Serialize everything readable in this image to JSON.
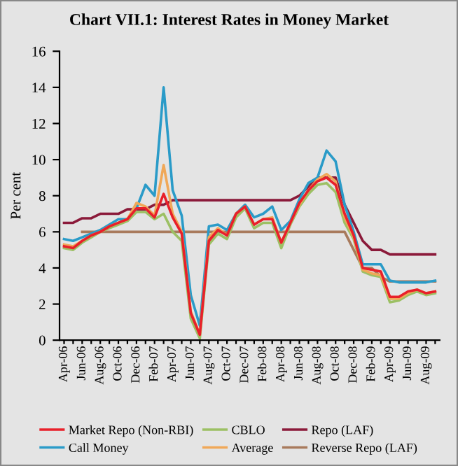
{
  "chart_data": {
    "type": "line",
    "title": "Chart VII.1: Interest Rates in Money Market",
    "ylabel": "Per cent",
    "categories": [
      "Apr-06",
      null,
      "Jun-06",
      null,
      "Aug-06",
      null,
      "Oct-06",
      null,
      "Dec-06",
      null,
      "Feb-07",
      null,
      "Apr-07",
      null,
      "Jun-07",
      null,
      "Aug-07",
      null,
      "Oct-07",
      null,
      "Dec-07",
      null,
      "Feb-08",
      null,
      "Apr-08",
      null,
      "Jun-08",
      null,
      "Aug-08",
      null,
      "Oct-08",
      null,
      "Dec-08",
      null,
      "Feb-09",
      null,
      "Apr-09",
      null,
      "Jun-09",
      null,
      "Aug-09",
      null
    ],
    "series": [
      {
        "name": "Reverse Repo (LAF)",
        "color": "#a87a5c",
        "values": [
          null,
          null,
          6.0,
          6.0,
          6.0,
          6.0,
          6.0,
          6.0,
          6.0,
          6.0,
          6.0,
          6.0,
          6.0,
          6.0,
          6.0,
          6.0,
          6.0,
          6.0,
          6.0,
          6.0,
          6.0,
          6.0,
          6.0,
          6.0,
          6.0,
          6.0,
          6.0,
          6.0,
          6.0,
          6.0,
          6.0,
          6.0,
          5.0,
          4.0,
          4.0,
          3.5,
          3.25,
          3.25,
          3.25,
          3.25,
          3.25,
          3.25
        ]
      },
      {
        "name": "Repo (LAF)",
        "color": "#8b1a3a",
        "values": [
          6.5,
          6.5,
          6.75,
          6.75,
          7.0,
          7.0,
          7.0,
          7.25,
          7.25,
          7.25,
          7.5,
          7.5,
          7.75,
          7.75,
          7.75,
          7.75,
          7.75,
          7.75,
          7.75,
          7.75,
          7.75,
          7.75,
          7.75,
          7.75,
          7.75,
          7.75,
          8.0,
          8.5,
          9.0,
          9.0,
          9.0,
          7.5,
          6.5,
          5.5,
          5.0,
          5.0,
          4.75,
          4.75,
          4.75,
          4.75,
          4.75,
          4.75
        ]
      },
      {
        "name": "Call Money",
        "color": "#2a9bc8",
        "values": [
          5.6,
          5.5,
          5.7,
          5.9,
          6.1,
          6.4,
          6.7,
          6.7,
          7.3,
          8.6,
          8.0,
          14.0,
          8.3,
          6.9,
          2.5,
          0.8,
          6.3,
          6.4,
          6.1,
          7.0,
          7.5,
          6.8,
          7.0,
          7.4,
          6.1,
          6.6,
          7.8,
          8.7,
          9.0,
          10.5,
          9.9,
          7.5,
          6.0,
          4.2,
          4.2,
          4.2,
          3.3,
          3.2,
          3.2,
          3.2,
          3.2,
          3.3
        ]
      },
      {
        "name": "CBLO",
        "color": "#9cc064",
        "values": [
          5.1,
          5.0,
          5.4,
          5.7,
          6.0,
          6.2,
          6.4,
          6.6,
          7.1,
          7.1,
          6.7,
          7.0,
          6.0,
          5.5,
          1.2,
          0.1,
          5.3,
          5.9,
          5.6,
          6.8,
          7.3,
          6.2,
          6.5,
          6.5,
          5.1,
          6.4,
          7.4,
          8.1,
          8.6,
          8.7,
          8.2,
          6.5,
          5.6,
          3.8,
          3.6,
          3.5,
          2.1,
          2.2,
          2.5,
          2.7,
          2.5,
          2.6
        ]
      },
      {
        "name": "Average",
        "color": "#f0a858",
        "values": [
          5.3,
          5.2,
          5.5,
          5.8,
          6.0,
          6.3,
          6.5,
          6.7,
          7.6,
          7.4,
          6.9,
          9.7,
          7.0,
          6.0,
          1.6,
          0.3,
          5.7,
          6.2,
          5.8,
          7.0,
          7.4,
          6.4,
          6.7,
          6.8,
          5.4,
          6.5,
          7.5,
          8.3,
          8.9,
          9.2,
          8.8,
          6.8,
          5.7,
          3.9,
          3.7,
          3.6,
          2.3,
          2.3,
          2.6,
          2.8,
          2.6,
          2.7
        ]
      },
      {
        "name": "Market Repo (Non-RBI)",
        "color": "#e8202a",
        "values": [
          5.2,
          5.1,
          5.5,
          5.8,
          6.0,
          6.3,
          6.5,
          6.7,
          7.3,
          7.3,
          6.8,
          8.1,
          6.8,
          5.9,
          1.5,
          0.3,
          5.5,
          6.1,
          5.8,
          7.0,
          7.4,
          6.4,
          6.7,
          6.7,
          5.4,
          6.5,
          7.6,
          8.3,
          8.8,
          9.0,
          8.6,
          7.0,
          5.8,
          4.0,
          3.9,
          3.8,
          2.4,
          2.4,
          2.7,
          2.8,
          2.6,
          2.7
        ]
      }
    ],
    "ylim": [
      0,
      16
    ],
    "yticks": [
      0,
      2,
      4,
      6,
      8,
      10,
      12,
      14,
      16
    ],
    "grid": false,
    "legend": "bottom"
  }
}
